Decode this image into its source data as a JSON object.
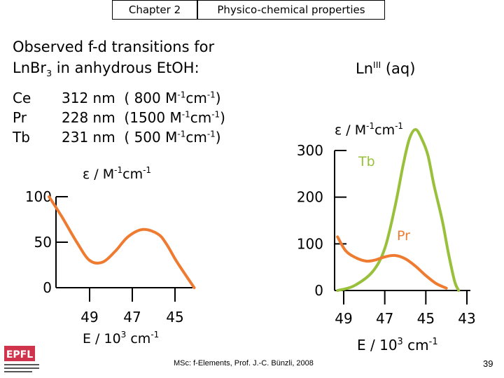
{
  "header": {
    "chapter": "Chapter 2",
    "section": "Physico-chemical properties"
  },
  "title_line1": "Observed f-d transitions for",
  "title_line2_pre": "LnBr",
  "title_line2_sub": "3",
  "title_line2_post": " in anhydrous EtOH:",
  "ln_label": {
    "base": "Ln",
    "sup": "III",
    "post": " (aq)"
  },
  "transitions": [
    {
      "element": "Ce",
      "wavelength": "312 nm",
      "pre": "( 800 M",
      "sup1": "-1",
      "mid": "cm",
      "sup2": "-1",
      "post": ")"
    },
    {
      "element": "Pr",
      "wavelength": "228 nm",
      "pre": "(1500 M",
      "sup1": "-1",
      "mid": "cm",
      "sup2": "-1",
      "post": ")"
    },
    {
      "element": "Tb",
      "wavelength": "231 nm",
      "pre": "( 500 M",
      "sup1": "-1",
      "mid": "cm",
      "sup2": "-1",
      "post": ")"
    }
  ],
  "footer": "MSc: f-Elements,  Prof. J.-C. Bünzli, 2008",
  "page_number": "39",
  "logo_text": "EPFL",
  "chart_data": [
    {
      "type": "line",
      "ylabel": "ε / M-1cm-1",
      "xlabel": "E / 103 cm-1",
      "x_ticks": [
        49,
        47,
        45
      ],
      "y_ticks": [
        0,
        50,
        100
      ],
      "ylim": [
        0,
        100
      ],
      "series": [
        {
          "color": "#ee7b30",
          "x": [
            50.9,
            50.3,
            49.6,
            49.0,
            48.4,
            47.8,
            47.2,
            46.5,
            45.8,
            45.4,
            44.9,
            44.1
          ],
          "y": [
            100,
            78,
            50,
            30,
            28,
            40,
            56,
            64,
            59,
            48,
            28,
            0
          ]
        }
      ]
    },
    {
      "type": "line",
      "ylabel": "ε / M-1cm-1",
      "xlabel": "E / 103 cm-1",
      "x_ticks": [
        49,
        47,
        45,
        43
      ],
      "y_ticks": [
        0,
        100,
        200,
        300
      ],
      "ylim": [
        0,
        300
      ],
      "annotations": [
        "Tb",
        "Pr"
      ],
      "series": [
        {
          "name": "Tb",
          "color": "#99c03a",
          "x": [
            49.3,
            48.5,
            47.6,
            47.0,
            46.5,
            46.1,
            45.8,
            45.5,
            45.2,
            44.9,
            44.6,
            44.2,
            43.9,
            43.6,
            43.4
          ],
          "y": [
            0,
            10,
            40,
            90,
            180,
            270,
            325,
            345,
            325,
            290,
            225,
            150,
            80,
            20,
            0
          ]
        },
        {
          "name": "Pr",
          "color": "#ee7b30",
          "x": [
            49.3,
            48.9,
            48.4,
            47.9,
            47.5,
            47.0,
            46.5,
            46.0,
            45.5,
            45.0,
            44.5,
            44.0
          ],
          "y": [
            115,
            85,
            70,
            63,
            65,
            72,
            75,
            68,
            52,
            32,
            15,
            5
          ]
        }
      ]
    }
  ]
}
